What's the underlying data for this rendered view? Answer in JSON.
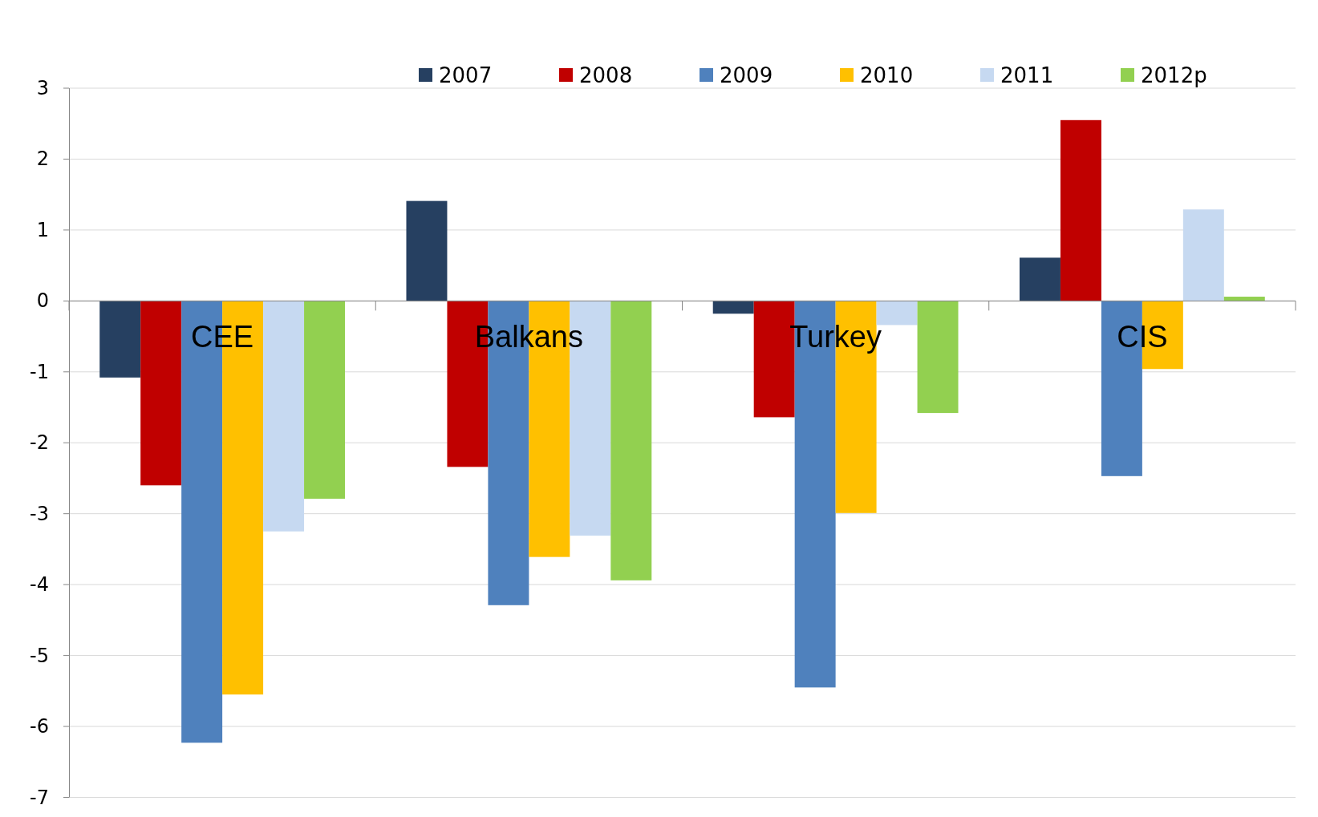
{
  "chart_data": {
    "type": "bar",
    "categories": [
      "CEE",
      "Balkans",
      "Turkey",
      "CIS"
    ],
    "series": [
      {
        "name": "2007",
        "color": "#264061",
        "values": [
          -1.08,
          1.41,
          -0.18,
          0.61
        ]
      },
      {
        "name": "2008",
        "color": "#c00000",
        "values": [
          -2.6,
          -2.34,
          -1.64,
          2.55
        ]
      },
      {
        "name": "2009",
        "color": "#4f81bd",
        "values": [
          -6.23,
          -4.29,
          -5.45,
          -2.47
        ]
      },
      {
        "name": "2010",
        "color": "#ffc000",
        "values": [
          -5.55,
          -3.61,
          -2.99,
          -0.96
        ]
      },
      {
        "name": "2011",
        "color": "#c6d9f1",
        "values": [
          -3.25,
          -3.31,
          -0.34,
          1.29
        ]
      },
      {
        "name": "2012p",
        "color": "#92d050",
        "values": [
          -2.79,
          -3.94,
          -1.58,
          0.06
        ]
      }
    ],
    "ylim": [
      -7,
      3
    ],
    "yticks": [
      -7,
      -6,
      -5,
      -4,
      -3,
      -2,
      -1,
      0,
      1,
      2,
      3
    ],
    "grid": "y",
    "legend": "top"
  }
}
